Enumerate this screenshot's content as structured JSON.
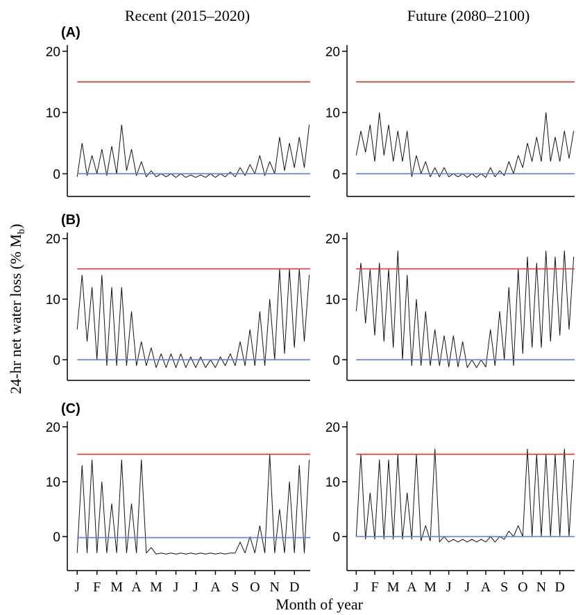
{
  "column_titles": [
    "Recent (2015–2020)",
    "Future (2080–2100)"
  ],
  "y_label": {
    "text": "24-hr net water loss (% M",
    "subscript": "b",
    "end": ")"
  },
  "x_label": "Month of year",
  "chart_data": [
    {
      "type": "line",
      "panel_label": "(A)",
      "x": [
        0.5,
        0.75,
        1,
        1.25,
        1.5,
        1.75,
        2,
        2.25,
        2.5,
        2.75,
        3,
        3.25,
        3.5,
        3.75,
        4,
        4.25,
        4.5,
        4.75,
        5,
        5.25,
        5.5,
        5.75,
        6,
        6.25,
        6.5,
        6.75,
        7,
        7.25,
        7.5,
        7.75,
        8,
        8.25,
        8.5,
        8.75,
        9,
        9.25,
        9.5,
        9.75,
        10,
        10.25,
        10.5,
        10.75,
        11,
        11.25,
        11.5,
        11.75,
        12,
        12.25
      ],
      "values": [
        -0.5,
        5,
        -0.3,
        3,
        0,
        4,
        -0.3,
        4.5,
        0,
        8,
        0.5,
        4,
        -0.3,
        2,
        -0.5,
        0.5,
        -0.5,
        0,
        -0.5,
        0,
        -0.6,
        0,
        -0.6,
        -0.2,
        -0.6,
        -0.2,
        -0.6,
        0,
        -0.6,
        0,
        -0.5,
        0.3,
        -0.5,
        1,
        -0.3,
        1.5,
        0,
        3,
        -0.3,
        2,
        0,
        6,
        0.5,
        5,
        1,
        6,
        1,
        8
      ],
      "color": "#111111",
      "xlim": [
        0,
        12.3
      ],
      "ylim": [
        -3.7,
        21
      ],
      "yticks": [
        0,
        10,
        20
      ],
      "hlines": [
        {
          "value": 15,
          "color": "#e8302a"
        },
        {
          "value": 0,
          "color": "#5a7fd8"
        }
      ]
    },
    {
      "type": "line",
      "x": [
        0.5,
        0.75,
        1,
        1.25,
        1.5,
        1.75,
        2,
        2.25,
        2.5,
        2.75,
        3,
        3.25,
        3.5,
        3.75,
        4,
        4.25,
        4.5,
        4.75,
        5,
        5.25,
        5.5,
        5.75,
        6,
        6.25,
        6.5,
        6.75,
        7,
        7.25,
        7.5,
        7.75,
        8,
        8.25,
        8.5,
        8.75,
        9,
        9.25,
        9.5,
        9.75,
        10,
        10.25,
        10.5,
        10.75,
        11,
        11.25,
        11.5,
        11.75,
        12,
        12.25
      ],
      "values": [
        3,
        7,
        3.5,
        8,
        2,
        10,
        3,
        8,
        2,
        7,
        2,
        7,
        -0.5,
        3,
        0,
        2,
        -0.5,
        1,
        -0.5,
        1,
        -0.5,
        0,
        -0.5,
        0,
        -0.6,
        0,
        -0.6,
        0,
        -0.6,
        1,
        -0.5,
        0.5,
        -0.3,
        2,
        0,
        3,
        1,
        5,
        2,
        6,
        2,
        10,
        2,
        6,
        2,
        7,
        2.5,
        7
      ],
      "color": "#111111",
      "xlim": [
        0,
        12.3
      ],
      "ylim": [
        -3.7,
        21
      ],
      "yticks": [
        0,
        10,
        20
      ],
      "hlines": [
        {
          "value": 15,
          "color": "#e8302a"
        },
        {
          "value": 0,
          "color": "#5a7fd8"
        }
      ]
    },
    {
      "type": "line",
      "panel_label": "(B)",
      "x": [
        0.5,
        0.75,
        1,
        1.25,
        1.5,
        1.75,
        2,
        2.25,
        2.5,
        2.75,
        3,
        3.25,
        3.5,
        3.75,
        4,
        4.25,
        4.5,
        4.75,
        5,
        5.25,
        5.5,
        5.75,
        6,
        6.25,
        6.5,
        6.75,
        7,
        7.25,
        7.5,
        7.75,
        8,
        8.25,
        8.5,
        8.75,
        9,
        9.25,
        9.5,
        9.75,
        10,
        10.25,
        10.5,
        10.75,
        11,
        11.25,
        11.5,
        11.75,
        12,
        12.25
      ],
      "values": [
        5,
        14,
        3,
        12,
        0,
        14,
        -1,
        12,
        -1,
        12,
        -1,
        8,
        -1,
        3,
        -1,
        2,
        -1.3,
        1,
        -1.3,
        1,
        -1.3,
        1,
        -1.3,
        0.5,
        -1.3,
        0.5,
        -1.3,
        0,
        -1.3,
        0.5,
        -1,
        1,
        -1,
        3,
        -1,
        5,
        -1,
        8,
        -1,
        10,
        0,
        15,
        1,
        15,
        2,
        15,
        3,
        14
      ],
      "color": "#111111",
      "xlim": [
        0,
        12.3
      ],
      "ylim": [
        -3.4,
        21
      ],
      "yticks": [
        0,
        10,
        20
      ],
      "hlines": [
        {
          "value": 15,
          "color": "#e8302a"
        },
        {
          "value": 0,
          "color": "#5a7fd8"
        }
      ]
    },
    {
      "type": "line",
      "x": [
        0.5,
        0.75,
        1,
        1.25,
        1.5,
        1.75,
        2,
        2.25,
        2.5,
        2.75,
        3,
        3.25,
        3.5,
        3.75,
        4,
        4.25,
        4.5,
        4.75,
        5,
        5.25,
        5.5,
        5.75,
        6,
        6.25,
        6.5,
        6.75,
        7,
        7.25,
        7.5,
        7.75,
        8,
        8.25,
        8.5,
        8.75,
        9,
        9.25,
        9.5,
        9.75,
        10,
        10.25,
        10.5,
        10.75,
        11,
        11.25,
        11.5,
        11.75,
        12,
        12.25
      ],
      "values": [
        8,
        16,
        6,
        15,
        4,
        16,
        3,
        15,
        2,
        18,
        0,
        14,
        -1,
        10,
        -1,
        8,
        -1,
        5,
        -1,
        4,
        -1.2,
        4,
        -1.2,
        3,
        -1.3,
        0,
        -1.3,
        0,
        -1.2,
        5,
        -1,
        8,
        0,
        12,
        -1,
        15,
        1,
        17,
        2,
        16,
        2,
        18,
        3,
        17,
        4,
        18,
        5,
        17
      ],
      "color": "#111111",
      "xlim": [
        0,
        12.3
      ],
      "ylim": [
        -3.4,
        21
      ],
      "yticks": [
        0,
        10,
        20
      ],
      "hlines": [
        {
          "value": 15,
          "color": "#e8302a"
        },
        {
          "value": 0,
          "color": "#5a7fd8"
        }
      ]
    },
    {
      "type": "line",
      "panel_label": "(C)",
      "x": [
        0.5,
        0.75,
        1,
        1.25,
        1.5,
        1.75,
        2,
        2.25,
        2.5,
        2.75,
        3,
        3.25,
        3.5,
        3.75,
        4,
        4.25,
        4.5,
        4.75,
        5,
        5.25,
        5.5,
        5.75,
        6,
        6.25,
        6.5,
        6.75,
        7,
        7.25,
        7.5,
        7.75,
        8,
        8.25,
        8.5,
        8.75,
        9,
        9.25,
        9.5,
        9.75,
        10,
        10.25,
        10.5,
        10.75,
        11,
        11.25,
        11.5,
        11.75,
        12,
        12.25
      ],
      "values": [
        -3,
        13,
        -3,
        14,
        -3,
        10,
        -3,
        6,
        -3,
        14,
        -3,
        6,
        -3,
        14,
        -3,
        -2,
        -3.2,
        -3,
        -3.2,
        -3,
        -3.2,
        -3,
        -3.2,
        -3,
        -3.2,
        -3,
        -3.2,
        -3,
        -3.2,
        -3,
        -3.2,
        -3,
        -3,
        -1,
        -3,
        0,
        -3,
        2,
        -3,
        15,
        -3,
        5,
        -3,
        10,
        -3,
        13,
        -3,
        14
      ],
      "color": "#111111",
      "xlim": [
        0,
        12.3
      ],
      "ylim": [
        -6.2,
        21
      ],
      "yticks": [
        0,
        10,
        20
      ],
      "xticks": [
        {
          "value": 0.5,
          "label": "J"
        },
        {
          "value": 1.5,
          "label": "F"
        },
        {
          "value": 2.5,
          "label": "M"
        },
        {
          "value": 3.5,
          "label": "A"
        },
        {
          "value": 4.5,
          "label": "M"
        },
        {
          "value": 5.5,
          "label": "J"
        },
        {
          "value": 6.5,
          "label": "J"
        },
        {
          "value": 7.5,
          "label": "A"
        },
        {
          "value": 8.5,
          "label": "S"
        },
        {
          "value": 9.5,
          "label": "O"
        },
        {
          "value": 10.5,
          "label": "N"
        },
        {
          "value": 11.5,
          "label": "D"
        }
      ],
      "hlines": [
        {
          "value": 15,
          "color": "#e8302a"
        },
        {
          "value": -0.2,
          "color": "#5a7fd8"
        }
      ]
    },
    {
      "type": "line",
      "x": [
        0.5,
        0.75,
        1,
        1.25,
        1.5,
        1.75,
        2,
        2.25,
        2.5,
        2.75,
        3,
        3.25,
        3.5,
        3.75,
        4,
        4.25,
        4.5,
        4.75,
        5,
        5.25,
        5.5,
        5.75,
        6,
        6.25,
        6.5,
        6.75,
        7,
        7.25,
        7.5,
        7.75,
        8,
        8.25,
        8.5,
        8.75,
        9,
        9.25,
        9.5,
        9.75,
        10,
        10.25,
        10.5,
        10.75,
        11,
        11.25,
        11.5,
        11.75,
        12,
        12.25
      ],
      "values": [
        0,
        15,
        -0.5,
        8,
        -0.5,
        14,
        -0.5,
        14,
        -0.5,
        15,
        -0.5,
        8,
        -0.5,
        15,
        -0.8,
        2,
        -0.8,
        16,
        -1,
        0,
        -1,
        -0.5,
        -1,
        -0.5,
        -1,
        -0.5,
        -1,
        -0.5,
        -1,
        0,
        -1,
        0,
        -0.5,
        1,
        0,
        2,
        0,
        16,
        0,
        15,
        0,
        15,
        0,
        15,
        0,
        16,
        0,
        14
      ],
      "color": "#111111",
      "xlim": [
        0,
        12.3
      ],
      "ylim": [
        -6.2,
        21
      ],
      "yticks": [
        0,
        10,
        20
      ],
      "xticks": [
        {
          "value": 0.5,
          "label": "J"
        },
        {
          "value": 1.5,
          "label": "F"
        },
        {
          "value": 2.5,
          "label": "M"
        },
        {
          "value": 3.5,
          "label": "A"
        },
        {
          "value": 4.5,
          "label": "M"
        },
        {
          "value": 5.5,
          "label": "J"
        },
        {
          "value": 6.5,
          "label": "J"
        },
        {
          "value": 7.5,
          "label": "A"
        },
        {
          "value": 8.5,
          "label": "S"
        },
        {
          "value": 9.5,
          "label": "O"
        },
        {
          "value": 10.5,
          "label": "N"
        },
        {
          "value": 11.5,
          "label": "D"
        }
      ],
      "hlines": [
        {
          "value": 15,
          "color": "#e8302a"
        },
        {
          "value": 0,
          "color": "#5a7fd8"
        }
      ]
    }
  ]
}
